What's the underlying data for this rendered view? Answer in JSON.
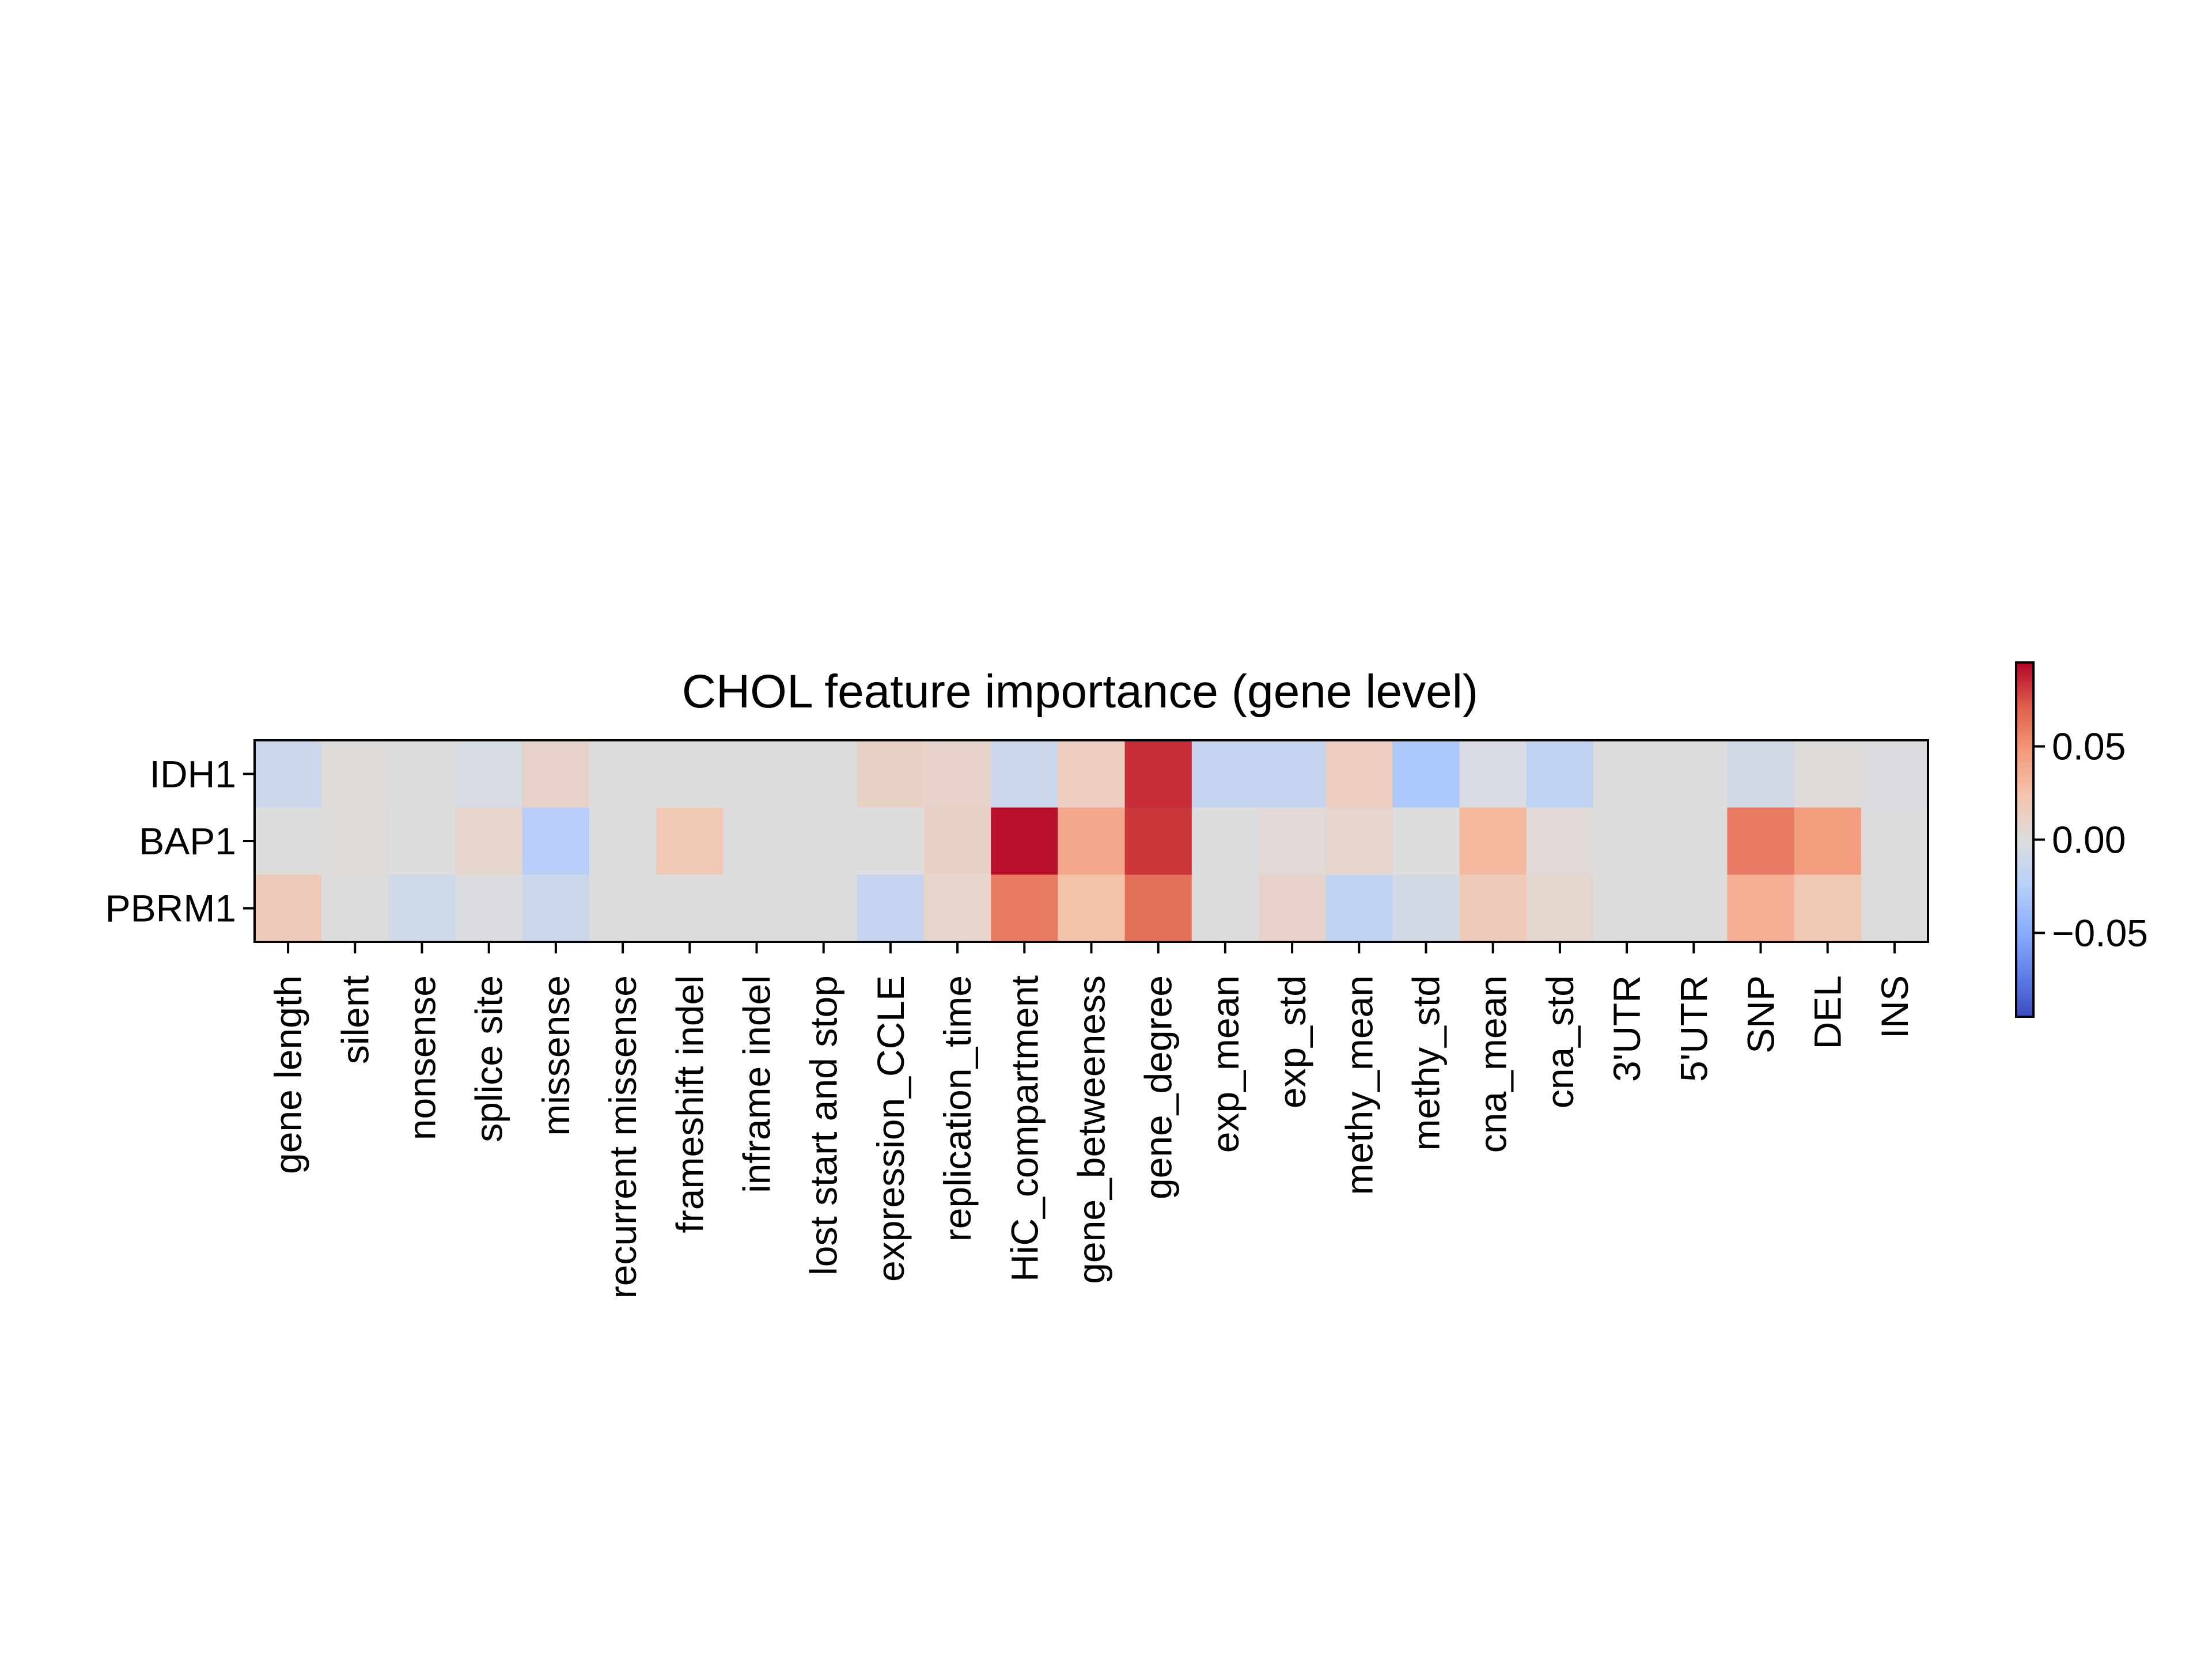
{
  "chart_data": {
    "type": "heatmap",
    "title": "CHOL feature importance (gene level)",
    "xlabel": "",
    "ylabel": "",
    "rows": [
      "IDH1",
      "BAP1",
      "PBRM1"
    ],
    "columns": [
      "gene length",
      "silent",
      "nonsense",
      "splice site",
      "missense",
      "recurrent missense",
      "frameshift indel",
      "inframe indel",
      "lost start and stop",
      "expression_CCLE",
      "replication_time",
      "HiC_compartment",
      "gene_betweeness",
      "gene_degree",
      "exp_mean",
      "exp_std",
      "methy_mean",
      "methy_std",
      "cna_mean",
      "cna_std",
      "3'UTR",
      "5'UTR",
      "SNP",
      "DEL",
      "INS"
    ],
    "values": [
      [
        -0.012,
        0.002,
        0.0,
        -0.004,
        0.01,
        0.0,
        0.0,
        0.0,
        0.0,
        0.012,
        0.01,
        -0.012,
        0.015,
        0.085,
        -0.015,
        -0.015,
        0.015,
        -0.03,
        -0.003,
        -0.018,
        0.0,
        0.0,
        -0.008,
        0.002,
        -0.002
      ],
      [
        0.0,
        0.003,
        0.0,
        0.008,
        -0.025,
        0.0,
        0.02,
        0.0,
        0.0,
        0.0,
        0.012,
        0.092,
        0.04,
        0.082,
        0.0,
        0.004,
        0.008,
        0.0,
        0.03,
        0.004,
        0.0,
        0.0,
        0.06,
        0.045,
        0.0
      ],
      [
        0.018,
        0.0,
        -0.01,
        -0.002,
        -0.012,
        0.0,
        0.0,
        0.0,
        0.0,
        -0.015,
        0.008,
        0.06,
        0.025,
        0.065,
        0.0,
        0.01,
        -0.018,
        -0.008,
        0.018,
        0.007,
        0.0,
        0.0,
        0.035,
        0.02,
        0.0
      ]
    ],
    "colormap": "coolwarm",
    "vmin": -0.095,
    "vmax": 0.095,
    "colorbar": {
      "ticks": [
        0.05,
        0.0,
        -0.05
      ],
      "tick_labels": [
        "0.05",
        "0.00",
        "−0.05"
      ]
    },
    "grid": false,
    "legend": "none"
  }
}
